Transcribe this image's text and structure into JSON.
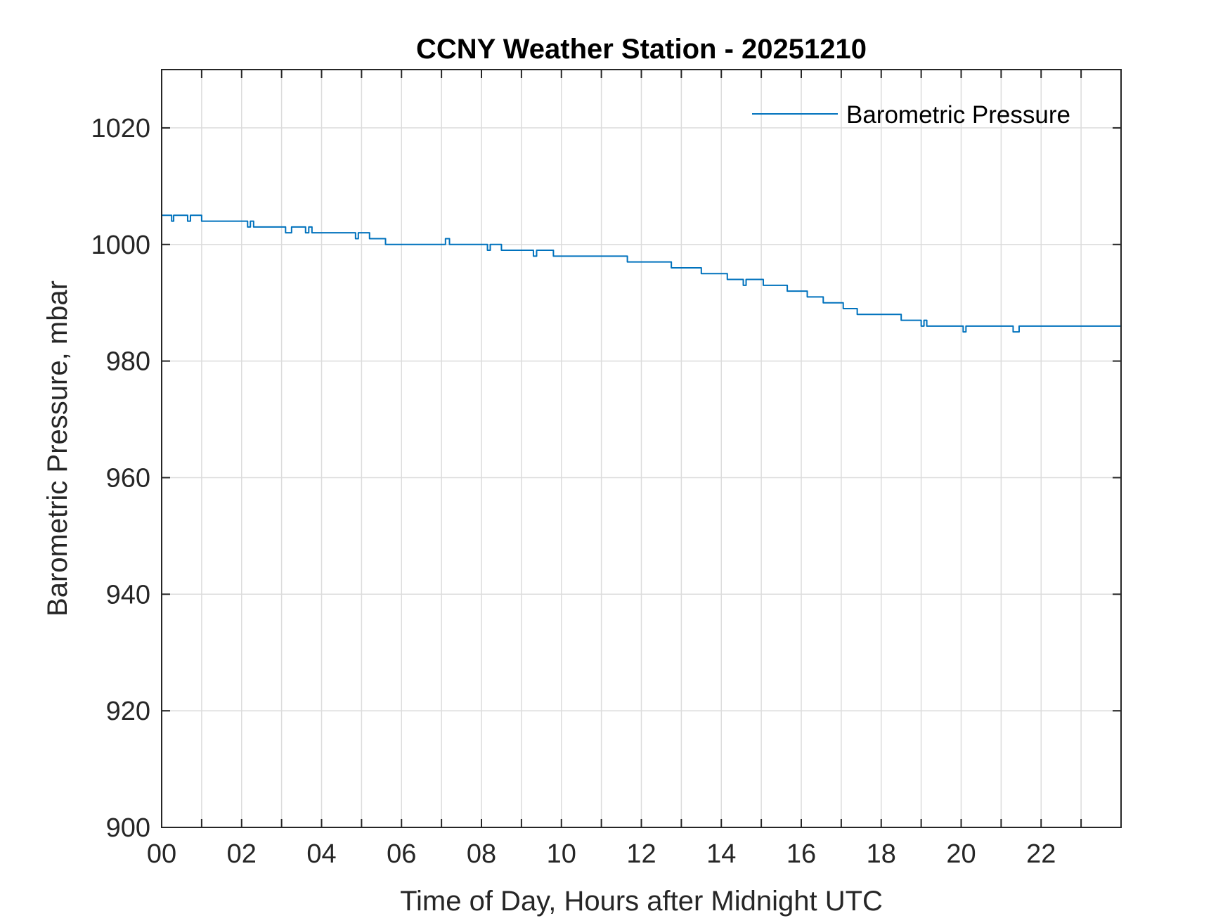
{
  "chart_data": {
    "type": "line",
    "title": "CCNY Weather Station - 20251210",
    "xlabel": "Time of Day, Hours after Midnight UTC",
    "ylabel": "Barometric Pressure, mbar",
    "xlim": [
      0,
      24
    ],
    "ylim": [
      900,
      1030
    ],
    "x_ticks": [
      0,
      2,
      4,
      6,
      8,
      10,
      12,
      14,
      16,
      18,
      20,
      22
    ],
    "x_tick_labels": [
      "00",
      "02",
      "04",
      "06",
      "08",
      "10",
      "12",
      "14",
      "16",
      "18",
      "20",
      "22"
    ],
    "x_minor_ticks": [
      1,
      3,
      5,
      7,
      9,
      11,
      13,
      15,
      17,
      19,
      21,
      23
    ],
    "y_ticks": [
      900,
      920,
      940,
      960,
      980,
      1000,
      1020
    ],
    "y_tick_labels": [
      "900",
      "920",
      "940",
      "960",
      "980",
      "1000",
      "1020"
    ],
    "grid": true,
    "legend_position": "top-right",
    "series": [
      {
        "name": "Barometric Pressure",
        "color": "#0072bd",
        "points": [
          [
            0.0,
            1005
          ],
          [
            0.25,
            1005
          ],
          [
            0.25,
            1004
          ],
          [
            0.3,
            1004
          ],
          [
            0.3,
            1005
          ],
          [
            0.65,
            1005
          ],
          [
            0.65,
            1004
          ],
          [
            0.72,
            1004
          ],
          [
            0.72,
            1005
          ],
          [
            1.0,
            1005
          ],
          [
            1.0,
            1004
          ],
          [
            2.15,
            1004
          ],
          [
            2.15,
            1003
          ],
          [
            2.22,
            1003
          ],
          [
            2.22,
            1004
          ],
          [
            2.3,
            1004
          ],
          [
            2.3,
            1003
          ],
          [
            3.1,
            1003
          ],
          [
            3.1,
            1002
          ],
          [
            3.25,
            1002
          ],
          [
            3.25,
            1003
          ],
          [
            3.6,
            1003
          ],
          [
            3.6,
            1002
          ],
          [
            3.68,
            1002
          ],
          [
            3.68,
            1003
          ],
          [
            3.76,
            1003
          ],
          [
            3.76,
            1002
          ],
          [
            4.85,
            1002
          ],
          [
            4.85,
            1001
          ],
          [
            4.92,
            1001
          ],
          [
            4.92,
            1002
          ],
          [
            5.2,
            1002
          ],
          [
            5.2,
            1001
          ],
          [
            5.6,
            1001
          ],
          [
            5.6,
            1000
          ],
          [
            7.1,
            1000
          ],
          [
            7.1,
            1001
          ],
          [
            7.2,
            1001
          ],
          [
            7.2,
            1000
          ],
          [
            8.15,
            1000
          ],
          [
            8.15,
            999
          ],
          [
            8.22,
            999
          ],
          [
            8.22,
            1000
          ],
          [
            8.5,
            1000
          ],
          [
            8.5,
            999
          ],
          [
            9.3,
            999
          ],
          [
            9.3,
            998
          ],
          [
            9.38,
            998
          ],
          [
            9.38,
            999
          ],
          [
            9.8,
            999
          ],
          [
            9.8,
            998
          ],
          [
            11.65,
            998
          ],
          [
            11.65,
            997
          ],
          [
            12.75,
            997
          ],
          [
            12.75,
            996
          ],
          [
            13.5,
            996
          ],
          [
            13.5,
            995
          ],
          [
            14.15,
            995
          ],
          [
            14.15,
            994
          ],
          [
            14.55,
            994
          ],
          [
            14.55,
            993
          ],
          [
            14.62,
            993
          ],
          [
            14.62,
            994
          ],
          [
            15.05,
            994
          ],
          [
            15.05,
            993
          ],
          [
            15.65,
            993
          ],
          [
            15.65,
            992
          ],
          [
            16.15,
            992
          ],
          [
            16.15,
            991
          ],
          [
            16.55,
            991
          ],
          [
            16.55,
            990
          ],
          [
            17.05,
            990
          ],
          [
            17.05,
            989
          ],
          [
            17.4,
            989
          ],
          [
            17.4,
            988
          ],
          [
            18.5,
            988
          ],
          [
            18.5,
            987
          ],
          [
            19.0,
            987
          ],
          [
            19.0,
            986
          ],
          [
            19.07,
            986
          ],
          [
            19.07,
            987
          ],
          [
            19.14,
            987
          ],
          [
            19.14,
            986
          ],
          [
            20.05,
            986
          ],
          [
            20.05,
            985
          ],
          [
            20.12,
            985
          ],
          [
            20.12,
            986
          ],
          [
            21.3,
            986
          ],
          [
            21.3,
            985
          ],
          [
            21.45,
            985
          ],
          [
            21.45,
            986
          ],
          [
            24.0,
            986
          ]
        ]
      }
    ]
  }
}
